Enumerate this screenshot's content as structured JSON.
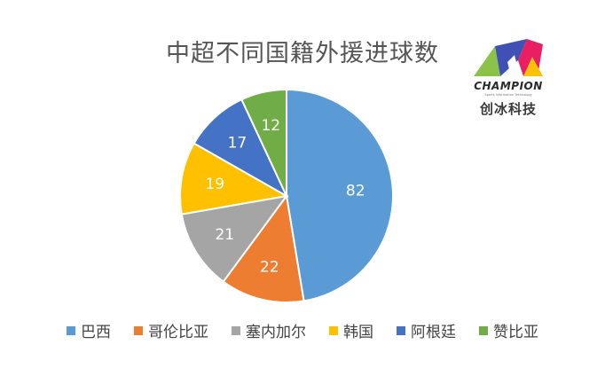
{
  "logo": {
    "name": "CHAMPION",
    "subtitle": "Sports Information Technology",
    "cn_name": "创冰科技"
  },
  "chart_data": {
    "type": "pie",
    "title": "中超不同国籍外援进球数",
    "categories": [
      "巴西",
      "哥伦比亚",
      "塞内加尔",
      "韩国",
      "阿根廷",
      "赞比亚"
    ],
    "values": [
      82,
      22,
      21,
      19,
      17,
      12
    ],
    "colors": [
      "#5b9bd5",
      "#ed7d31",
      "#a5a5a5",
      "#ffc000",
      "#4472c4",
      "#70ad47"
    ],
    "start_angle": "12 o'clock, clockwise",
    "legend_position": "bottom"
  }
}
